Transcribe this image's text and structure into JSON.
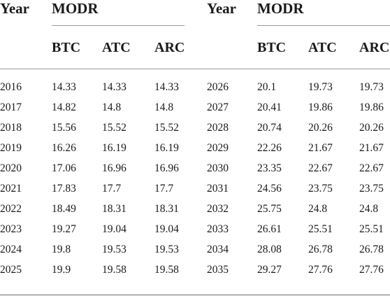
{
  "table": {
    "year_header": "Year",
    "group_header": "MODR",
    "columns": [
      "BTC",
      "ATC",
      "ARC"
    ],
    "left_rows": [
      {
        "year": "2016",
        "btc": "14.33",
        "atc": "14.33",
        "arc": "14.33"
      },
      {
        "year": "2017",
        "btc": "14.82",
        "atc": "14.8",
        "arc": "14.8"
      },
      {
        "year": "2018",
        "btc": "15.56",
        "atc": "15.52",
        "arc": "15.52"
      },
      {
        "year": "2019",
        "btc": "16.26",
        "atc": "16.19",
        "arc": "16.19"
      },
      {
        "year": "2020",
        "btc": "17.06",
        "atc": "16.96",
        "arc": "16.96"
      },
      {
        "year": "2021",
        "btc": "17.83",
        "atc": "17.7",
        "arc": "17.7"
      },
      {
        "year": "2022",
        "btc": "18.49",
        "atc": "18.31",
        "arc": "18.31"
      },
      {
        "year": "2023",
        "btc": "19.27",
        "atc": "19.04",
        "arc": "19.04"
      },
      {
        "year": "2024",
        "btc": "19.8",
        "atc": "19.53",
        "arc": "19.53"
      },
      {
        "year": "2025",
        "btc": "19.9",
        "atc": "19.58",
        "arc": "19.58"
      }
    ],
    "right_rows": [
      {
        "year": "2026",
        "btc": "20.1",
        "atc": "19.73",
        "arc": "19.73"
      },
      {
        "year": "2027",
        "btc": "20.41",
        "atc": "19.86",
        "arc": "19.86"
      },
      {
        "year": "2028",
        "btc": "20.74",
        "atc": "20.26",
        "arc": "20.26"
      },
      {
        "year": "2029",
        "btc": "22.26",
        "atc": "21.67",
        "arc": "21.67"
      },
      {
        "year": "2030",
        "btc": "23.35",
        "atc": "22.67",
        "arc": "22.67"
      },
      {
        "year": "2031",
        "btc": "24.56",
        "atc": "23.75",
        "arc": "23.75"
      },
      {
        "year": "2032",
        "btc": "25.75",
        "atc": "24.8",
        "arc": "24.8"
      },
      {
        "year": "2033",
        "btc": "26.61",
        "atc": "25.51",
        "arc": "25.51"
      },
      {
        "year": "2034",
        "btc": "28.08",
        "atc": "26.78",
        "arc": "26.78"
      },
      {
        "year": "2035",
        "btc": "29.27",
        "atc": "27.76",
        "arc": "27.76"
      }
    ]
  }
}
